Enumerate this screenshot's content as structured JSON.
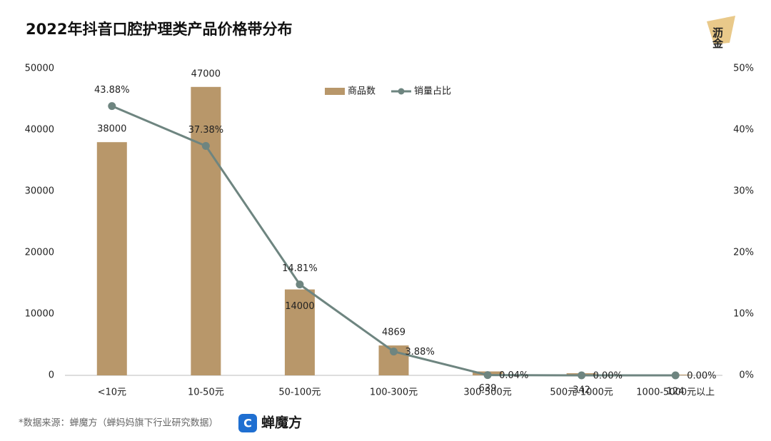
{
  "chart_data": {
    "type": "bar-line",
    "title": "2022年抖音口腔护理类产品价格带分布",
    "source": "*数据来源：蝉魔方（蝉妈妈旗下行业研究数据）",
    "brand": "蝉魔方",
    "corner_logo": "沥金",
    "categories": [
      "<10元",
      "10-50元",
      "50-100元",
      "100-300元",
      "300-500元",
      "500元-1000元",
      "1000-5000元以上"
    ],
    "series": [
      {
        "name": "商品数",
        "type": "bar",
        "color": "#b8976a",
        "values": [
          38000,
          47000,
          14000,
          4869,
          639,
          342,
          124
        ]
      },
      {
        "name": "销量占比",
        "type": "line",
        "axis": "y2",
        "color": "#6e8580",
        "values": [
          43.88,
          37.38,
          14.81,
          3.88,
          0.04,
          0.0,
          0.0
        ],
        "value_labels": [
          "43.88%",
          "37.38%",
          "14.81%",
          "3.88%",
          "0.04%",
          "0.00%",
          "0.00%"
        ]
      }
    ],
    "ylim": [
      0,
      50000
    ],
    "yticks": [
      0,
      10000,
      20000,
      30000,
      40000,
      50000
    ],
    "y2lim": [
      0,
      50
    ],
    "y2ticks": [
      {
        "value": 0,
        "label": "0%"
      },
      {
        "value": 10,
        "label": "10%"
      },
      {
        "value": 20,
        "label": "20%"
      },
      {
        "value": 30,
        "label": "30%"
      },
      {
        "value": 40,
        "label": "40%"
      },
      {
        "value": 50,
        "label": "50%"
      }
    ],
    "legend": "top",
    "grid": false
  }
}
